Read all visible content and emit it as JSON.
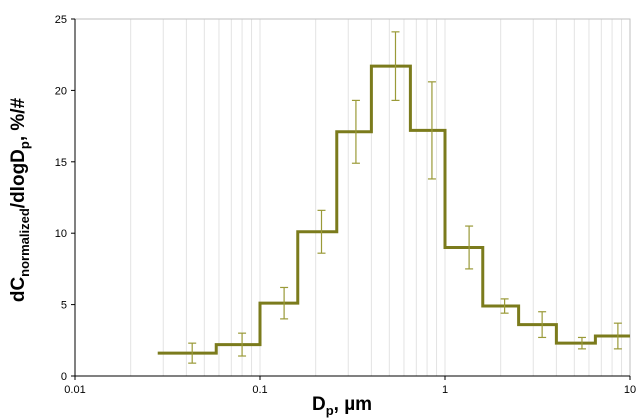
{
  "chart_data": {
    "type": "line",
    "title": "",
    "xlabel": "D",
    "xlabel_sub": "p",
    "xlabel_suffix": ", µm",
    "ylabel_parts": [
      "dC",
      "normalized",
      "/dlogD",
      "p",
      ", %/#"
    ],
    "x_scale": "log",
    "xlim": [
      0.01,
      10
    ],
    "ylim": [
      0,
      25
    ],
    "x_tick_values": [
      0.01,
      0.1,
      1,
      10
    ],
    "x_tick_labels": [
      "0.01",
      "0.1",
      "1",
      "10"
    ],
    "y_tick_values": [
      0,
      5,
      10,
      15,
      20,
      25
    ],
    "y_tick_labels": [
      "0",
      "5",
      "10",
      "15",
      "20",
      "25"
    ],
    "grid": "vertical minor log gridlines",
    "line_color": "#7b7b1c",
    "errorbar_color": "#9a9a38",
    "bins": [
      {
        "x_start": 0.028,
        "x_end": 0.058,
        "y": 1.6,
        "x_center": 0.043,
        "err": 0.7
      },
      {
        "x_start": 0.058,
        "x_end": 0.1,
        "y": 2.2,
        "x_center": 0.08,
        "err": 0.8
      },
      {
        "x_start": 0.1,
        "x_end": 0.16,
        "y": 5.1,
        "x_center": 0.135,
        "err": 1.1
      },
      {
        "x_start": 0.16,
        "x_end": 0.26,
        "y": 10.1,
        "x_center": 0.215,
        "err": 1.5
      },
      {
        "x_start": 0.26,
        "x_end": 0.4,
        "y": 17.1,
        "x_center": 0.33,
        "err": 2.2
      },
      {
        "x_start": 0.4,
        "x_end": 0.65,
        "y": 21.7,
        "x_center": 0.54,
        "err": 2.4
      },
      {
        "x_start": 0.65,
        "x_end": 1.0,
        "y": 17.2,
        "x_center": 0.85,
        "err": 3.4
      },
      {
        "x_start": 1.0,
        "x_end": 1.6,
        "y": 9.0,
        "x_center": 1.35,
        "err": 1.5
      },
      {
        "x_start": 1.6,
        "x_end": 2.5,
        "y": 4.9,
        "x_center": 2.1,
        "err": 0.5
      },
      {
        "x_start": 2.5,
        "x_end": 4.0,
        "y": 3.6,
        "x_center": 3.35,
        "err": 0.9
      },
      {
        "x_start": 4.0,
        "x_end": 6.5,
        "y": 2.3,
        "x_center": 5.5,
        "err": 0.4
      },
      {
        "x_start": 6.5,
        "x_end": 10,
        "y": 2.8,
        "x_center": 8.6,
        "err": 0.9
      }
    ]
  }
}
